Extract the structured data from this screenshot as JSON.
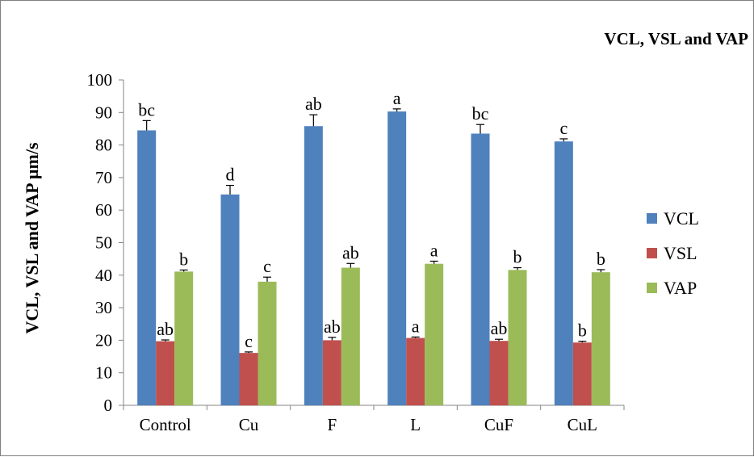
{
  "chart_data": {
    "type": "bar",
    "title": "VCL, VSL and VAP",
    "xlabel": "",
    "ylabel": "VCL, VSL and VAP µm/s",
    "ylim": [
      0,
      100
    ],
    "yticks": [
      0,
      10,
      20,
      30,
      40,
      50,
      60,
      70,
      80,
      90,
      100
    ],
    "grid": false,
    "legend_position": "right",
    "categories": [
      "Control",
      "Cu",
      "F",
      "L",
      "CuF",
      "CuL"
    ],
    "series": [
      {
        "name": "VCL",
        "color": "#4f81bd",
        "values": [
          84.5,
          64.8,
          85.8,
          90.3,
          83.5,
          81.1
        ],
        "errors": [
          3.0,
          2.8,
          3.5,
          0.8,
          2.8,
          0.8
        ],
        "labels": [
          "bc",
          "d",
          "ab",
          "a",
          "bc",
          "c"
        ]
      },
      {
        "name": "VSL",
        "color": "#c0504d",
        "values": [
          19.7,
          16.1,
          20.0,
          20.7,
          19.8,
          19.3
        ],
        "errors": [
          0.4,
          0.3,
          0.9,
          0.3,
          0.5,
          0.4
        ],
        "labels": [
          "ab",
          "c",
          "ab",
          "a",
          "ab",
          "b"
        ]
      },
      {
        "name": "VAP",
        "color": "#9bbb59",
        "values": [
          41.1,
          38.0,
          42.3,
          43.5,
          41.6,
          40.9
        ],
        "errors": [
          0.5,
          1.4,
          1.3,
          0.8,
          0.7,
          0.8
        ],
        "labels": [
          "b",
          "c",
          "ab",
          "a",
          "b",
          "b"
        ]
      }
    ]
  }
}
